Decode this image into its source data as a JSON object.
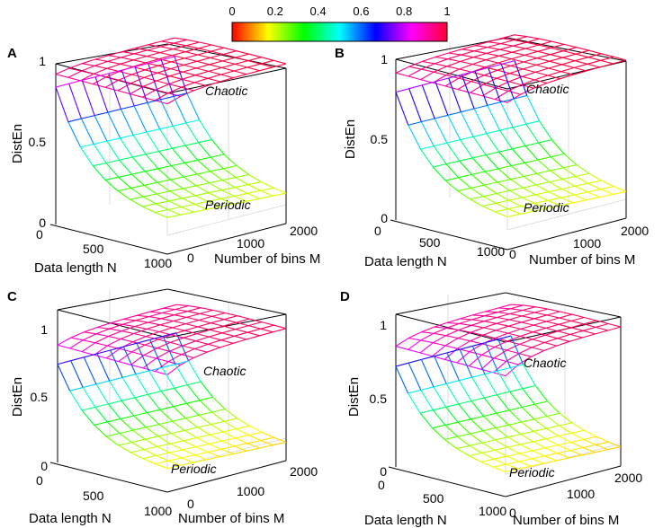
{
  "colorbar": {
    "ticks": [
      "0",
      "0.2",
      "0.4",
      "0.6",
      "0.8",
      "1"
    ],
    "colormap": "hsv"
  },
  "chart_data": [
    {
      "type": "surface3d",
      "panel": "A",
      "zlabel": "DistEn",
      "xlabel": "Data length N",
      "ylabel": "Number of bins M",
      "zticks": [
        "0",
        "0.5",
        "1"
      ],
      "xticks": [
        "0",
        "500",
        "1000"
      ],
      "yticks": [
        "0",
        "1000",
        "2000"
      ],
      "zlim": [
        0,
        1
      ],
      "annotations": [
        "Chaotic",
        "Periodic"
      ],
      "series": [
        {
          "name": "Chaotic",
          "z_low": 0.93,
          "z_high": 0.99
        },
        {
          "name": "Periodic",
          "z_max": 0.85,
          "z_min": 0.2
        }
      ]
    },
    {
      "type": "surface3d",
      "panel": "B",
      "zlabel": "DistEn",
      "xlabel": "Data length N",
      "ylabel": "Number of bins M",
      "zticks": [
        "0",
        "0.5",
        "1"
      ],
      "xticks": [
        "0",
        "500",
        "1000"
      ],
      "yticks": [
        "0",
        "1000",
        "2000"
      ],
      "zlim": [
        0,
        1
      ],
      "annotations": [
        "Chaotic",
        "Periodic"
      ],
      "series": [
        {
          "name": "Chaotic",
          "z_low": 0.92,
          "z_high": 0.99
        },
        {
          "name": "Periodic",
          "z_max": 0.8,
          "z_min": 0.18
        }
      ]
    },
    {
      "type": "surface3d",
      "panel": "C",
      "zlabel": "DistEn",
      "xlabel": "Data length N",
      "ylabel": "Number of bins M",
      "zticks": [
        "0",
        "0.5",
        "1"
      ],
      "xticks": [
        "0",
        "500",
        "1000"
      ],
      "yticks": [
        "0",
        "1000",
        "2000"
      ],
      "zlim": [
        0,
        1
      ],
      "annotations": [
        "Chaotic",
        "Periodic"
      ],
      "series": [
        {
          "name": "Chaotic",
          "z_low": 0.86,
          "z_high": 0.97
        },
        {
          "name": "Periodic",
          "z_max": 0.72,
          "z_min": 0.15
        }
      ]
    },
    {
      "type": "surface3d",
      "panel": "D",
      "zlabel": "DistEn",
      "xlabel": "Data length N",
      "ylabel": "Number of bins M",
      "zticks": [
        "0",
        "0.5",
        "1"
      ],
      "xticks": [
        "0",
        "500",
        "1000"
      ],
      "yticks": [
        "0",
        "1000",
        "2000"
      ],
      "zlim": [
        0,
        1
      ],
      "annotations": [
        "Chaotic",
        "Periodic"
      ],
      "series": [
        {
          "name": "Chaotic",
          "z_low": 0.84,
          "z_high": 0.97
        },
        {
          "name": "Periodic",
          "z_max": 0.7,
          "z_min": 0.15
        }
      ]
    }
  ]
}
